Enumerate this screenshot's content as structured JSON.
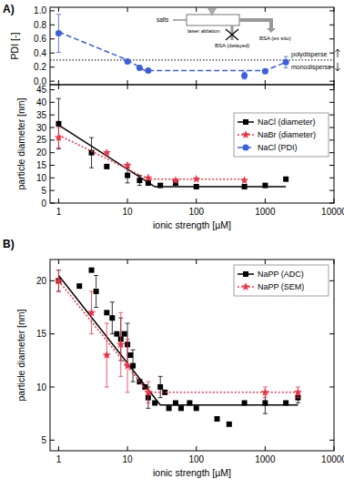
{
  "chart_data": [
    {
      "type": "scatter",
      "panel": "A)",
      "y_label": "PDI [-]",
      "log": "x",
      "grid": false,
      "tick_labels": "y",
      "xlim": [
        0.75,
        10000
      ],
      "xticks": [
        1,
        10,
        100,
        1000,
        10000
      ],
      "ylim": [
        -0.05,
        1.05
      ],
      "yticks": [
        {
          "value": 0,
          "label": "0.0"
        },
        {
          "value": 0.2,
          "label": "0.2"
        },
        {
          "value": 0.4,
          "label": "0.4"
        },
        {
          "value": 0.6,
          "label": "0.6"
        },
        {
          "value": 0.8,
          "label": "0.8"
        },
        {
          "value": 1.0,
          "label": "1.0"
        }
      ],
      "threshold": 0.3,
      "annotations": [
        "polydisperse",
        "monodisperse"
      ],
      "schematic": [
        "salts",
        "laser ablation",
        "BSA (delayed)",
        "BSA (ex situ)"
      ],
      "series": [
        {
          "name": "NaCl (PDI)",
          "color": "#3a5fe0",
          "marker": "circle",
          "line_style": "dashed",
          "x": [
            1,
            10,
            15,
            20,
            500,
            1000,
            2000
          ],
          "values": [
            0.68,
            0.28,
            0.19,
            0.15,
            0.08,
            0.14,
            0.27
          ],
          "errors": [
            0.27,
            null,
            null,
            null,
            0.05,
            null,
            0.08
          ],
          "fit": {
            "x": [
              1,
              10,
              18,
              1000,
              2000
            ],
            "values": [
              0.7,
              0.3,
              0.15,
              0.15,
              0.27
            ]
          }
        }
      ]
    },
    {
      "type": "scatter",
      "x_label": "ionic strength [µM]",
      "y_label": "particle diameter [nm]",
      "log": "x",
      "grid": false,
      "legend": "right",
      "xlim": [
        0.75,
        10000
      ],
      "xticks": [
        1,
        10,
        100,
        1000,
        10000
      ],
      "ylim": [
        0,
        47
      ],
      "yticks": [
        0,
        5,
        10,
        15,
        20,
        25,
        30,
        35,
        40,
        45
      ],
      "series": [
        {
          "name": "NaCl (diameter)",
          "color": "#000000",
          "marker": "square",
          "line_style": "solid",
          "x": [
            1,
            3,
            5,
            10,
            15,
            20,
            30,
            50,
            100,
            500,
            1000,
            2000
          ],
          "values": [
            31.5,
            20,
            14.5,
            11,
            9,
            8,
            7,
            8,
            6.5,
            6.5,
            7,
            9.5
          ],
          "errors": [
            10,
            6,
            null,
            3,
            2,
            1,
            null,
            null,
            null,
            null,
            null,
            null
          ],
          "fit": {
            "x": [
              1,
              25,
              2000
            ],
            "values": [
              31,
              6.5,
              6.5
            ]
          }
        },
        {
          "name": "NaBr (diameter)",
          "color": "#ee3344",
          "marker": "star",
          "line_style": "dotted",
          "x": [
            1,
            5,
            10,
            20,
            50,
            100,
            500
          ],
          "values": [
            26,
            20,
            15,
            10,
            9,
            9.5,
            9
          ],
          "errors": [
            4,
            null,
            null,
            null,
            null,
            null,
            null
          ],
          "fit": {
            "x": [
              1,
              20,
              500
            ],
            "values": [
              27,
              9.5,
              9.5
            ]
          }
        }
      ]
    },
    {
      "type": "scatter",
      "panel": "B)",
      "x_label": "ionic strength [µM]",
      "y_label": "particle diameter [nm]",
      "log": "x",
      "grid": false,
      "legend": "upper right",
      "xlim": [
        0.75,
        10000
      ],
      "xticks": [
        1,
        10,
        100,
        1000,
        10000
      ],
      "ylim": [
        4,
        22
      ],
      "yticks": [
        5,
        10,
        15,
        20
      ],
      "series": [
        {
          "name": "NaPP (ADC)",
          "color": "#000000",
          "marker": "square",
          "line_style": "solid",
          "x": [
            1,
            2,
            3,
            3.5,
            5,
            6,
            7,
            8,
            9,
            10,
            11,
            12,
            15,
            18,
            20,
            25,
            30,
            35,
            40,
            50,
            60,
            80,
            100,
            200,
            300,
            500,
            1000,
            2000,
            3000
          ],
          "values": [
            20,
            19.5,
            21,
            19,
            17,
            16.5,
            15,
            14.5,
            15,
            14,
            13,
            12,
            10.5,
            10,
            9,
            8.5,
            10,
            9.5,
            8,
            8.5,
            8,
            8.5,
            8,
            7,
            6.5,
            8.5,
            8.5,
            8.5,
            9
          ],
          "errors": [
            1,
            null,
            null,
            1.5,
            null,
            1.5,
            null,
            2,
            null,
            2,
            null,
            1.5,
            null,
            null,
            1,
            null,
            1,
            null,
            null,
            null,
            null,
            null,
            null,
            null,
            null,
            null,
            1,
            null,
            0.5
          ],
          "fit": {
            "x": [
              1,
              30,
              3000
            ],
            "values": [
              20.5,
              8.3,
              8.3
            ]
          }
        },
        {
          "name": "NaPP (SEM)",
          "color": "#ee3344",
          "marker": "star",
          "line_style": "dotted",
          "x": [
            1,
            3,
            5,
            8,
            10,
            20,
            1000,
            3000
          ],
          "values": [
            20,
            17,
            13,
            14,
            12,
            9.5,
            9.5,
            9.5
          ],
          "errors": [
            1,
            2,
            3,
            3,
            2.5,
            1,
            0.5,
            0.5
          ],
          "fit": {
            "x": [
              1,
              20,
              3000
            ],
            "values": [
              20,
              9.5,
              9.5
            ]
          }
        }
      ]
    }
  ]
}
